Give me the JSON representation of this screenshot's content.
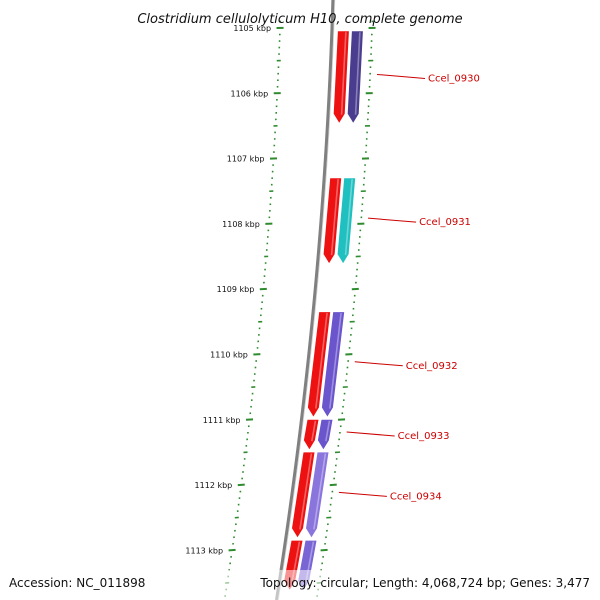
{
  "title": "Clostridium cellulolyticum H10, complete genome",
  "footer": {
    "accession": "Accession: NC_011898",
    "summary": "Topology: circular; Length: 4,068,724 bp; Genes: 3,477"
  },
  "colors": {
    "backbone": "#808080",
    "ticks": "#2e8b2e",
    "gene_label": "#cc0000",
    "label_line": "#cc0000",
    "cds_strand": "#ee1111"
  },
  "ruler": {
    "unit": "kbp",
    "labels": [
      {
        "kbp": 1105,
        "text": "1105 kbp"
      },
      {
        "kbp": 1106,
        "text": "1106 kbp"
      },
      {
        "kbp": 1107,
        "text": "1107 kbp"
      },
      {
        "kbp": 1108,
        "text": "1108 kbp"
      },
      {
        "kbp": 1109,
        "text": "1109 kbp"
      },
      {
        "kbp": 1110,
        "text": "1110 kbp"
      },
      {
        "kbp": 1111,
        "text": "1111 kbp"
      },
      {
        "kbp": 1112,
        "text": "1112 kbp"
      },
      {
        "kbp": 1113,
        "text": "1113 kbp"
      }
    ]
  },
  "genes": [
    {
      "label": "Ccel_0930",
      "start_kbp": 1105.05,
      "end_kbp": 1106.45,
      "color": "#4a3d8f"
    },
    {
      "label": "Ccel_0931",
      "start_kbp": 1107.3,
      "end_kbp": 1108.6,
      "color": "#20c0c0"
    },
    {
      "label": "Ccel_0932",
      "start_kbp": 1109.35,
      "end_kbp": 1110.95,
      "color": "#6a55cc"
    },
    {
      "label": "Ccel_0933",
      "start_kbp": 1111.0,
      "end_kbp": 1111.45,
      "color": "#6a55cc"
    },
    {
      "label": "Ccel_0934",
      "start_kbp": 1111.5,
      "end_kbp": 1112.8,
      "color": "#8a75dd"
    },
    {
      "label": "",
      "start_kbp": 1112.85,
      "end_kbp": 1113.6,
      "color": "#7a65d5"
    }
  ]
}
